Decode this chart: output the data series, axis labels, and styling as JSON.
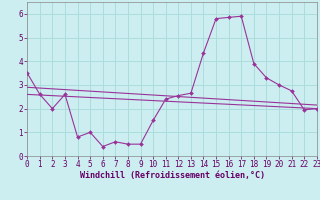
{
  "xlabel": "Windchill (Refroidissement éolien,°C)",
  "background_color": "#cceef0",
  "grid_color": "#aadddd",
  "line_color": "#993399",
  "x": [
    0,
    1,
    2,
    3,
    4,
    5,
    6,
    7,
    8,
    9,
    10,
    11,
    12,
    13,
    14,
    15,
    16,
    17,
    18,
    19,
    20,
    21,
    22,
    23
  ],
  "line1": [
    3.5,
    2.6,
    2.0,
    2.6,
    0.8,
    1.0,
    0.4,
    0.6,
    0.5,
    0.5,
    1.5,
    2.4,
    2.55,
    2.65,
    4.35,
    5.8,
    5.85,
    5.9,
    3.9,
    3.3,
    3.0,
    2.75,
    1.95,
    2.0
  ],
  "line2_x": [
    0,
    23
  ],
  "line2_y": [
    2.6,
    2.0
  ],
  "line3_x": [
    0,
    23
  ],
  "line3_y": [
    2.9,
    2.15
  ],
  "ylim": [
    0,
    6.5
  ],
  "xlim": [
    0,
    23
  ],
  "yticks": [
    0,
    1,
    2,
    3,
    4,
    5,
    6
  ],
  "xticks": [
    0,
    1,
    2,
    3,
    4,
    5,
    6,
    7,
    8,
    9,
    10,
    11,
    12,
    13,
    14,
    15,
    16,
    17,
    18,
    19,
    20,
    21,
    22,
    23
  ],
  "xtick_labels": [
    "0",
    "1",
    "2",
    "3",
    "4",
    "5",
    "6",
    "7",
    "8",
    "9",
    "10",
    "11",
    "12",
    "13",
    "14",
    "15",
    "16",
    "17",
    "18",
    "19",
    "20",
    "21",
    "22",
    "23"
  ],
  "ytick_labels": [
    "0",
    "1",
    "2",
    "3",
    "4",
    "5",
    "6"
  ],
  "tick_color": "#660066",
  "label_fontsize": 5.5,
  "xlabel_fontsize": 6.0
}
